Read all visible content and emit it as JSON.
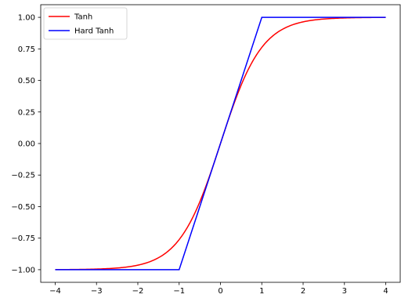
{
  "chart_data": {
    "type": "line",
    "title": "",
    "xlabel": "",
    "ylabel": "",
    "xlim": [
      -4.35,
      4.35
    ],
    "ylim": [
      -1.1,
      1.1
    ],
    "xticks": [
      -4,
      -3,
      -2,
      -1,
      0,
      1,
      2,
      3,
      4
    ],
    "yticks": [
      -1.0,
      -0.75,
      -0.5,
      -0.25,
      0.0,
      0.25,
      0.5,
      0.75,
      1.0
    ],
    "xtick_labels": [
      "−4",
      "−3",
      "−2",
      "−1",
      "0",
      "1",
      "2",
      "3",
      "4"
    ],
    "ytick_labels": [
      "−1.00",
      "−0.75",
      "−0.50",
      "−0.25",
      "0.00",
      "0.25",
      "0.50",
      "0.75",
      "1.00"
    ],
    "grid": false,
    "legend": "top-left",
    "series": [
      {
        "name": "Tanh",
        "color": "#ff0000",
        "x": [
          -4,
          -3.5,
          -3,
          -2.5,
          -2,
          -1.5,
          -1.25,
          -1,
          -0.75,
          -0.5,
          -0.25,
          0,
          0.25,
          0.5,
          0.75,
          1,
          1.25,
          1.5,
          2,
          2.5,
          3,
          3.5,
          4
        ],
        "y": [
          -0.999,
          -0.998,
          -0.995,
          -0.987,
          -0.964,
          -0.905,
          -0.848,
          -0.762,
          -0.635,
          -0.462,
          -0.245,
          0.0,
          0.245,
          0.462,
          0.635,
          0.762,
          0.848,
          0.905,
          0.964,
          0.987,
          0.995,
          0.998,
          0.999
        ]
      },
      {
        "name": "Hard Tanh",
        "color": "#0000ff",
        "x": [
          -4,
          -1,
          1,
          4
        ],
        "y": [
          -1,
          -1,
          1,
          1
        ]
      }
    ]
  }
}
